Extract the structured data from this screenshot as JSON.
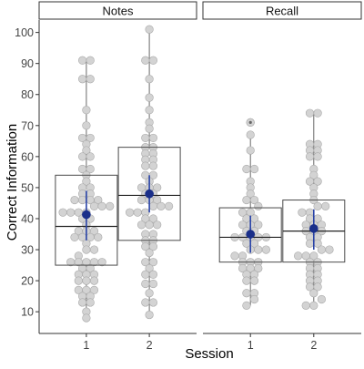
{
  "chart_data": {
    "type": "box",
    "xlabel": "Session",
    "ylabel": "Correct Information",
    "ylim": [
      3,
      104
    ],
    "yticks": [
      10,
      20,
      30,
      40,
      50,
      60,
      70,
      80,
      90,
      100
    ],
    "categories": [
      "1",
      "2"
    ],
    "grid": false,
    "legend": "none",
    "colors": {
      "point_fill": "#d3d3d3",
      "point_stroke": "#a8a8a8",
      "box_stroke": "#4a4a4a",
      "whisker": "#6a6a6a",
      "mean": "#1a2f8a",
      "mean_line": "#2a44a8",
      "strip_fill": "#ffffff",
      "strip_stroke": "#333333"
    },
    "panels": [
      {
        "name": "Notes",
        "groups": [
          {
            "session": "1",
            "min": 8,
            "q1": 25,
            "median": 37.5,
            "q3": 54,
            "max": 91,
            "mean": 41.3,
            "mean_ci": [
              33,
              49
            ],
            "outliers": [],
            "points": [
              8,
              10,
              13,
              13,
              15,
              15,
              17,
              17,
              17,
              20,
              20,
              20,
              22,
              22,
              22,
              24,
              24,
              26,
              26,
              26,
              26,
              26,
              28,
              30,
              30,
              32,
              34,
              34,
              34,
              34,
              36,
              36,
              36,
              38,
              40,
              40,
              42,
              42,
              42,
              42,
              44,
              44,
              44,
              46,
              46,
              46,
              46,
              48,
              48,
              50,
              50,
              52,
              54,
              56,
              56,
              60,
              60,
              62,
              64,
              66,
              66,
              70,
              75,
              85,
              85,
              91,
              91
            ]
          },
          {
            "session": "2",
            "min": 9,
            "q1": 33,
            "median": 47.5,
            "q3": 63,
            "max": 101,
            "mean": 48,
            "mean_ci": [
              42,
              54
            ],
            "outliers": [],
            "points": [
              9,
              13,
              13,
              16,
              19,
              19,
              22,
              22,
              24,
              26,
              26,
              29,
              31,
              31,
              33,
              33,
              35,
              35,
              38,
              38,
              38,
              40,
              40,
              42,
              42,
              42,
              44,
              44,
              44,
              46,
              46,
              46,
              48,
              48,
              50,
              50,
              50,
              52,
              54,
              54,
              57,
              57,
              59,
              59,
              61,
              61,
              63,
              63,
              66,
              66,
              69,
              71,
              75,
              79,
              85,
              91,
              91,
              101
            ]
          }
        ]
      },
      {
        "name": "Recall",
        "groups": [
          {
            "session": "1",
            "min": 12,
            "q1": 26,
            "median": 34,
            "q3": 43.5,
            "max": 67,
            "mean": 35,
            "mean_ci": [
              29,
              41
            ],
            "outliers": [
              71
            ],
            "points": [
              12,
              14,
              16,
              16,
              20,
              20,
              22,
              22,
              24,
              24,
              24,
              26,
              26,
              26,
              28,
              28,
              30,
              30,
              30,
              32,
              32,
              34,
              34,
              34,
              34,
              34,
              36,
              36,
              38,
              38,
              38,
              40,
              40,
              42,
              42,
              44,
              46,
              46,
              48,
              50,
              52,
              56,
              56,
              62,
              67,
              71
            ]
          },
          {
            "session": "2",
            "min": 12,
            "q1": 26,
            "median": 36,
            "q3": 46,
            "max": 74,
            "mean": 36.8,
            "mean_ci": [
              30,
              43
            ],
            "outliers": [],
            "points": [
              12,
              12,
              14,
              16,
              18,
              18,
              20,
              20,
              22,
              22,
              24,
              24,
              26,
              26,
              28,
              28,
              28,
              30,
              30,
              32,
              32,
              34,
              34,
              36,
              36,
              36,
              38,
              38,
              38,
              40,
              40,
              42,
              42,
              44,
              44,
              46,
              48,
              50,
              52,
              52,
              54,
              56,
              60,
              60,
              62,
              62,
              64,
              64,
              74,
              74
            ]
          }
        ]
      }
    ]
  }
}
